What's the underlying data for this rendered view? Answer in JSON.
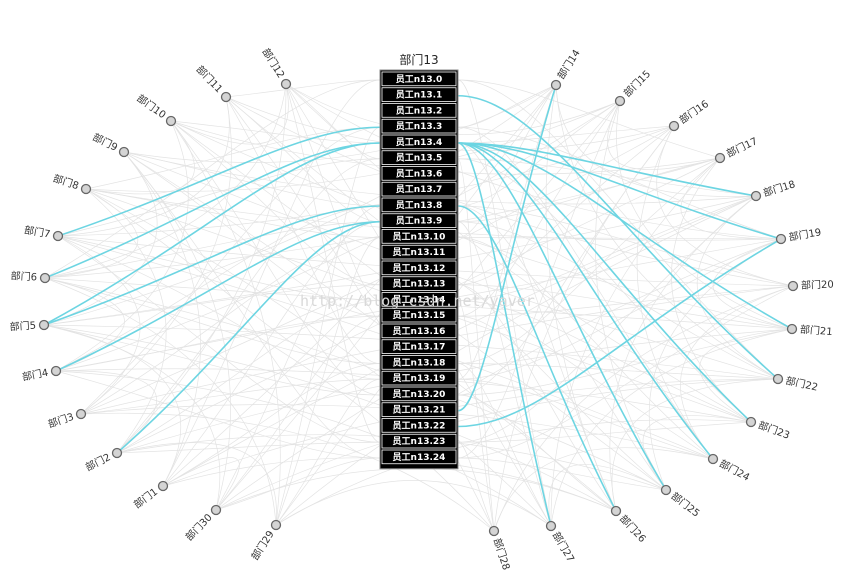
{
  "diagram": {
    "title": "部门13",
    "watermark": "http://blog.csdn.net/yaver",
    "colors": {
      "highlight": "#6dd5e2",
      "background_edge": "#e3e3e3",
      "node_fill": "#d4d4d4",
      "node_stroke": "#666666",
      "box_fill": "#000000",
      "cell_stroke": "#ffffff"
    },
    "departments": [
      {
        "id": "d1",
        "label": "部门1"
      },
      {
        "id": "d2",
        "label": "部门2"
      },
      {
        "id": "d3",
        "label": "部门3"
      },
      {
        "id": "d4",
        "label": "部门4"
      },
      {
        "id": "d5",
        "label": "部门5"
      },
      {
        "id": "d6",
        "label": "部门6"
      },
      {
        "id": "d7",
        "label": "部门7"
      },
      {
        "id": "d8",
        "label": "部门8"
      },
      {
        "id": "d9",
        "label": "部门9"
      },
      {
        "id": "d10",
        "label": "部门10"
      },
      {
        "id": "d11",
        "label": "部门11"
      },
      {
        "id": "d12",
        "label": "部门12"
      },
      {
        "id": "d14",
        "label": "部门14"
      },
      {
        "id": "d15",
        "label": "部门15"
      },
      {
        "id": "d16",
        "label": "部门16"
      },
      {
        "id": "d17",
        "label": "部门17"
      },
      {
        "id": "d18",
        "label": "部门18"
      },
      {
        "id": "d19",
        "label": "部门19"
      },
      {
        "id": "d20",
        "label": "部门20"
      },
      {
        "id": "d21",
        "label": "部门21"
      },
      {
        "id": "d22",
        "label": "部门22"
      },
      {
        "id": "d23",
        "label": "部门23"
      },
      {
        "id": "d24",
        "label": "部门24"
      },
      {
        "id": "d25",
        "label": "部门25"
      },
      {
        "id": "d26",
        "label": "部门26"
      },
      {
        "id": "d27",
        "label": "部门27"
      },
      {
        "id": "d28",
        "label": "部门28"
      },
      {
        "id": "d29",
        "label": "部门29"
      },
      {
        "id": "d30",
        "label": "部门30"
      }
    ],
    "employees": [
      "员工n13.0",
      "员工n13.1",
      "员工n13.2",
      "员工n13.3",
      "员工n13.4",
      "员工n13.5",
      "员工n13.6",
      "员工n13.7",
      "员工n13.8",
      "员工n13.9",
      "员工n13.10",
      "员工n13.11",
      "员工n13.12",
      "员工n13.13",
      "员工n13.14",
      "员工n13.15",
      "员工n13.16",
      "员工n13.17",
      "员工n13.18",
      "员工n13.19",
      "员工n13.20",
      "员工n13.21",
      "员工n13.22",
      "员工n13.23",
      "员工n13.24"
    ],
    "highlighted_links": [
      {
        "employee": 3,
        "dept": "d7"
      },
      {
        "employee": 4,
        "dept": "d5"
      },
      {
        "employee": 4,
        "dept": "d6"
      },
      {
        "employee": 8,
        "dept": "d5"
      },
      {
        "employee": 9,
        "dept": "d4"
      },
      {
        "employee": 9,
        "dept": "d2"
      },
      {
        "employee": 1,
        "dept": "d22"
      },
      {
        "employee": 4,
        "dept": "d18"
      },
      {
        "employee": 4,
        "dept": "d19"
      },
      {
        "employee": 4,
        "dept": "d21"
      },
      {
        "employee": 4,
        "dept": "d23"
      },
      {
        "employee": 4,
        "dept": "d24"
      },
      {
        "employee": 4,
        "dept": "d25"
      },
      {
        "employee": 4,
        "dept": "d27"
      },
      {
        "employee": 8,
        "dept": "d26"
      },
      {
        "employee": 21,
        "dept": "d14"
      },
      {
        "employee": 22,
        "dept": "d19"
      }
    ]
  }
}
